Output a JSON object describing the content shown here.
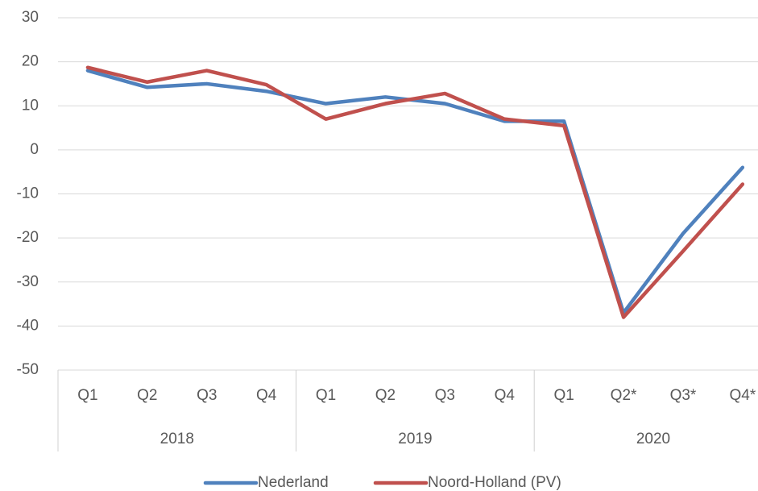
{
  "chart_data": {
    "type": "line",
    "categories": [
      "Q1",
      "Q2",
      "Q3",
      "Q4",
      "Q1",
      "Q2",
      "Q3",
      "Q4",
      "Q1",
      "Q2*",
      "Q3*",
      "Q4*"
    ],
    "category_groups": [
      "2018",
      "2019",
      "2020"
    ],
    "series": [
      {
        "name": "Nederland",
        "color": "#4f81bd",
        "values": [
          18,
          14.2,
          15,
          13.3,
          10.5,
          12,
          10.5,
          6.5,
          6.5,
          -37,
          -19,
          -4
        ]
      },
      {
        "name": "Noord-Holland (PV)",
        "color": "#c0504d",
        "values": [
          18.7,
          15.4,
          18,
          14.8,
          7,
          10.5,
          12.8,
          7,
          5.5,
          -38,
          -23,
          -7.8
        ]
      }
    ],
    "ylim": [
      -50,
      30
    ],
    "yticks": [
      -50,
      -40,
      -30,
      -20,
      -10,
      0,
      10,
      20,
      30
    ],
    "grid": true,
    "legend": "bottom"
  }
}
